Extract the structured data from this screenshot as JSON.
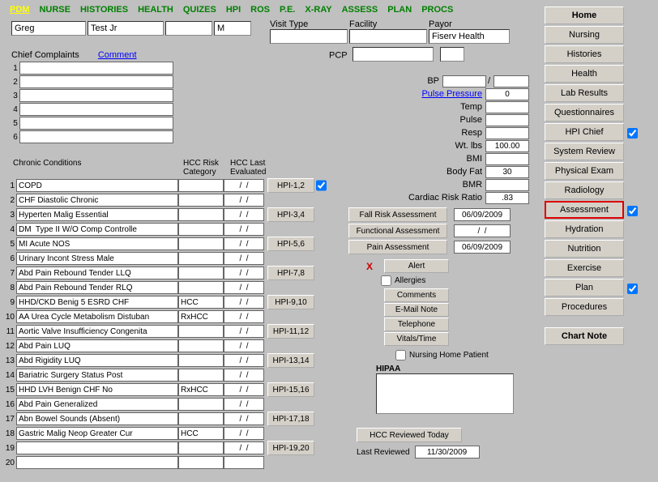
{
  "topnav": [
    "PDM",
    "NURSE",
    "HISTORIES",
    "HEALTH",
    "QUIZES",
    "HPI",
    "ROS",
    "P.E.",
    "X-RAY",
    "ASSESS",
    "PLAN",
    "PROCS"
  ],
  "patient": {
    "first": "Greg",
    "last": "Test Jr",
    "mid": "",
    "sex": "M"
  },
  "visit": {
    "visitTypeLabel": "Visit Type",
    "facilityLabel": "Facility",
    "payorLabel": "Payor",
    "visitType": "",
    "facility": "",
    "payor": "Fiserv Health",
    "pcpLabel": "PCP",
    "pcp": ""
  },
  "complaints": {
    "header": "Chief Complaints",
    "commentLink": "Comment",
    "rows": [
      "",
      "",
      "",
      "",
      "",
      ""
    ]
  },
  "chronic": {
    "headers": {
      "cond": "Chronic Conditions",
      "hcc": "HCC Risk Category",
      "eval": "HCC Last Evaluated"
    },
    "rows": [
      {
        "n": "1",
        "cond": "COPD",
        "hcc": "",
        "eval": "/  /"
      },
      {
        "n": "2",
        "cond": "CHF Diastolic Chronic",
        "hcc": "",
        "eval": "/  /"
      },
      {
        "n": "3",
        "cond": "Hyperten Malig Essential",
        "hcc": "",
        "eval": "/  /"
      },
      {
        "n": "4",
        "cond": "DM  Type II W/O Comp Controlle",
        "hcc": "",
        "eval": "/  /"
      },
      {
        "n": "5",
        "cond": "MI Acute NOS",
        "hcc": "",
        "eval": "/  /"
      },
      {
        "n": "6",
        "cond": "Urinary Incont Stress Male",
        "hcc": "",
        "eval": "/  /"
      },
      {
        "n": "7",
        "cond": "Abd Pain Rebound Tender LLQ",
        "hcc": "",
        "eval": "/  /"
      },
      {
        "n": "8",
        "cond": "Abd Pain Rebound Tender RLQ",
        "hcc": "",
        "eval": "/  /"
      },
      {
        "n": "9",
        "cond": "HHD/CKD Benig 5 ESRD CHF",
        "hcc": "HCC",
        "eval": "/  /"
      },
      {
        "n": "10",
        "cond": "AA Urea Cycle Metabolism Distuban",
        "hcc": "RxHCC",
        "eval": "/  /"
      },
      {
        "n": "11",
        "cond": "Aortic Valve Insufficiency Congenita",
        "hcc": "",
        "eval": "/  /"
      },
      {
        "n": "12",
        "cond": "Abd Pain LUQ",
        "hcc": "",
        "eval": "/  /"
      },
      {
        "n": "13",
        "cond": "Abd Rigidity LUQ",
        "hcc": "",
        "eval": "/  /"
      },
      {
        "n": "14",
        "cond": "Bariatric Surgery Status Post",
        "hcc": "",
        "eval": "/  /"
      },
      {
        "n": "15",
        "cond": "HHD LVH Benign CHF No",
        "hcc": "RxHCC",
        "eval": "/  /"
      },
      {
        "n": "16",
        "cond": "Abd Pain Generalized",
        "hcc": "",
        "eval": "/  /"
      },
      {
        "n": "17",
        "cond": "Abn Bowel Sounds (Absent)",
        "hcc": "",
        "eval": "/  /"
      },
      {
        "n": "18",
        "cond": "Gastric Malig Neop Greater Cur",
        "hcc": "HCC",
        "eval": "/  /"
      },
      {
        "n": "19",
        "cond": "",
        "hcc": "",
        "eval": "/  /"
      },
      {
        "n": "20",
        "cond": "",
        "hcc": "",
        "eval": ""
      }
    ],
    "hpiButtons": [
      {
        "row": 0,
        "label": "HPI-1,2",
        "chk": true
      },
      {
        "row": 2,
        "label": "HPI-3,4"
      },
      {
        "row": 4,
        "label": "HPI-5,6"
      },
      {
        "row": 6,
        "label": "HPI-7,8"
      },
      {
        "row": 8,
        "label": "HPI-9,10"
      },
      {
        "row": 10,
        "label": "HPI-11,12"
      },
      {
        "row": 12,
        "label": "HPI-13,14"
      },
      {
        "row": 14,
        "label": "HPI-15,16"
      },
      {
        "row": 16,
        "label": "HPI-17,18"
      },
      {
        "row": 18,
        "label": "HPI-19,20"
      }
    ]
  },
  "vitals": [
    {
      "label": "BP",
      "v": "",
      "bp": true,
      "v2": ""
    },
    {
      "label": "Pulse Pressure",
      "v": "0",
      "link": true
    },
    {
      "label": "Temp",
      "v": ""
    },
    {
      "label": "Pulse",
      "v": ""
    },
    {
      "label": "Resp",
      "v": ""
    },
    {
      "label": "Wt.  lbs",
      "v": "100.00"
    },
    {
      "label": "BMI",
      "v": ""
    },
    {
      "label": "Body Fat",
      "v": "30"
    },
    {
      "label": "BMR",
      "v": ""
    },
    {
      "label": "Cardiac Risk Ratio",
      "v": ".83"
    }
  ],
  "assessBtns": [
    {
      "label": "Fall Risk Assessment",
      "date": "06/09/2009"
    },
    {
      "label": "Functional Assessment",
      "date": "/  /"
    },
    {
      "label": "Pain Assessment",
      "date": "06/09/2009"
    }
  ],
  "commBtns": [
    "Alert",
    "Comments",
    "E-Mail Note",
    "Telephone",
    "Vitals/Time"
  ],
  "xMark": "X",
  "allergies": {
    "label": "Allergies"
  },
  "nursingHome": {
    "label": "Nursing Home Patient"
  },
  "hipaa": {
    "label": "HIPAA",
    "text": ""
  },
  "hccReview": {
    "btn": "HCC Reviewed Today",
    "lastLabel": "Last Reviewed",
    "lastDate": "11/30/2009"
  },
  "rightbar": [
    {
      "label": "Home",
      "bold": true
    },
    {
      "label": "Nursing"
    },
    {
      "label": "Histories"
    },
    {
      "label": "Health"
    },
    {
      "label": "Lab Results"
    },
    {
      "label": "Questionnaires"
    },
    {
      "label": "HPI Chief",
      "chk": true
    },
    {
      "label": "System Review"
    },
    {
      "label": "Physical Exam"
    },
    {
      "label": "Radiology"
    },
    {
      "label": "Assessment",
      "chk": true,
      "hl": true
    },
    {
      "label": "Hydration"
    },
    {
      "label": "Nutrition"
    },
    {
      "label": "Exercise"
    },
    {
      "label": "Plan",
      "chk": true
    },
    {
      "label": "Procedures"
    },
    {
      "label": "Chart Note",
      "bold": true,
      "sep": true
    }
  ]
}
